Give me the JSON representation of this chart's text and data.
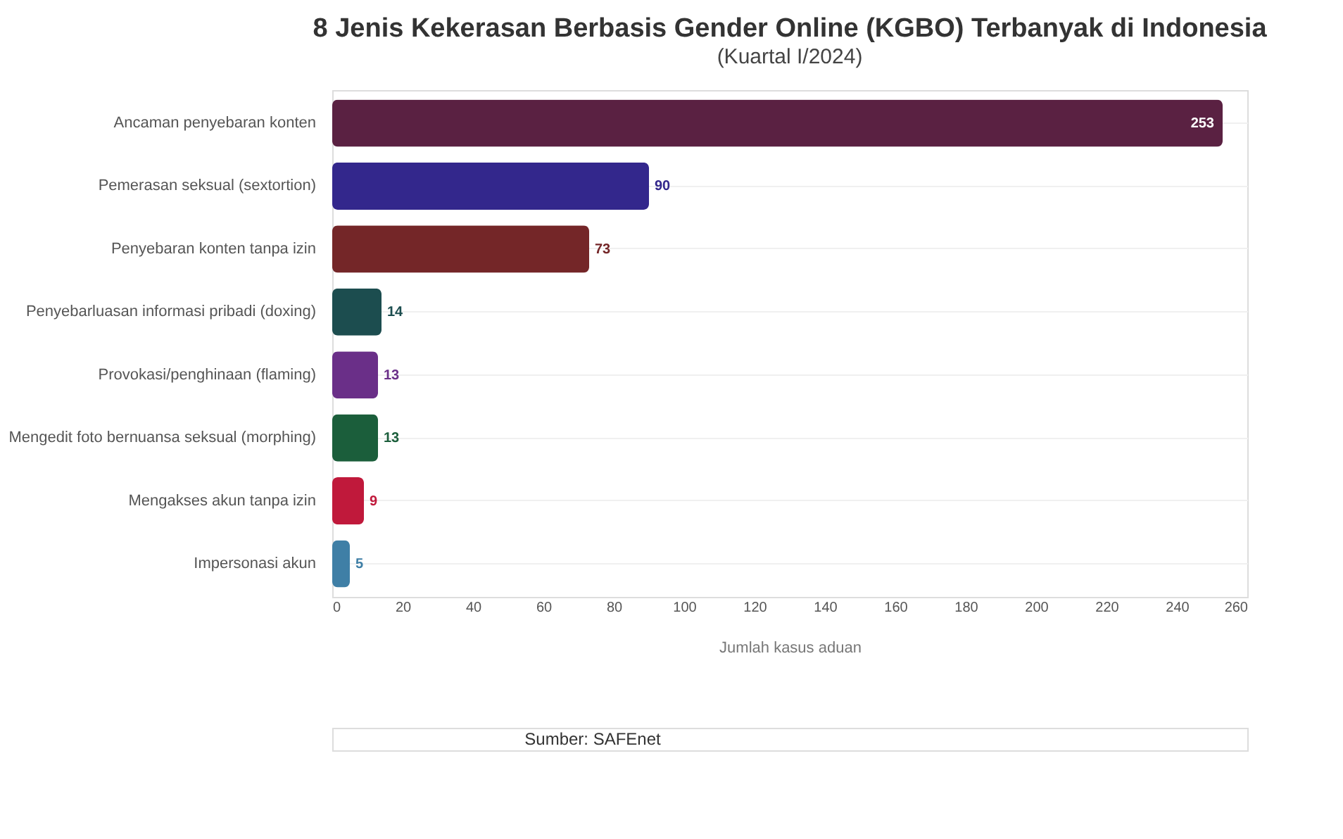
{
  "chart_data": {
    "type": "bar",
    "orientation": "horizontal",
    "title": "8 Jenis Kekerasan Berbasis Gender Online (KGBO) Terbanyak di Indonesia",
    "subtitle": "(Kuartal I/2024)",
    "categories": [
      "Ancaman penyebaran konten",
      "Pemerasan seksual (sextortion)",
      "Penyebaran konten tanpa izin",
      "Penyebarluasan informasi pribadi (doxing)",
      "Provokasi/penghinaan (flaming)",
      "Mengedit foto bernuansa seksual (morphing)",
      "Mengakses akun tanpa izin",
      "Impersonasi akun"
    ],
    "values": [
      253,
      90,
      73,
      14,
      13,
      13,
      9,
      5
    ],
    "colors": [
      "#5a2142",
      "#33278c",
      "#742628",
      "#1c4d4f",
      "#6a2f88",
      "#1b5e3b",
      "#c0193b",
      "#3f7fa6"
    ],
    "xlabel": "Jumlah kasus aduan",
    "xlim": [
      0,
      260
    ],
    "xticks": [
      0,
      20,
      40,
      60,
      80,
      100,
      120,
      140,
      160,
      180,
      200,
      220,
      240,
      260
    ],
    "grid": "y",
    "data_labels": true,
    "annotations": [
      "Sumber: SAFEnet"
    ]
  }
}
